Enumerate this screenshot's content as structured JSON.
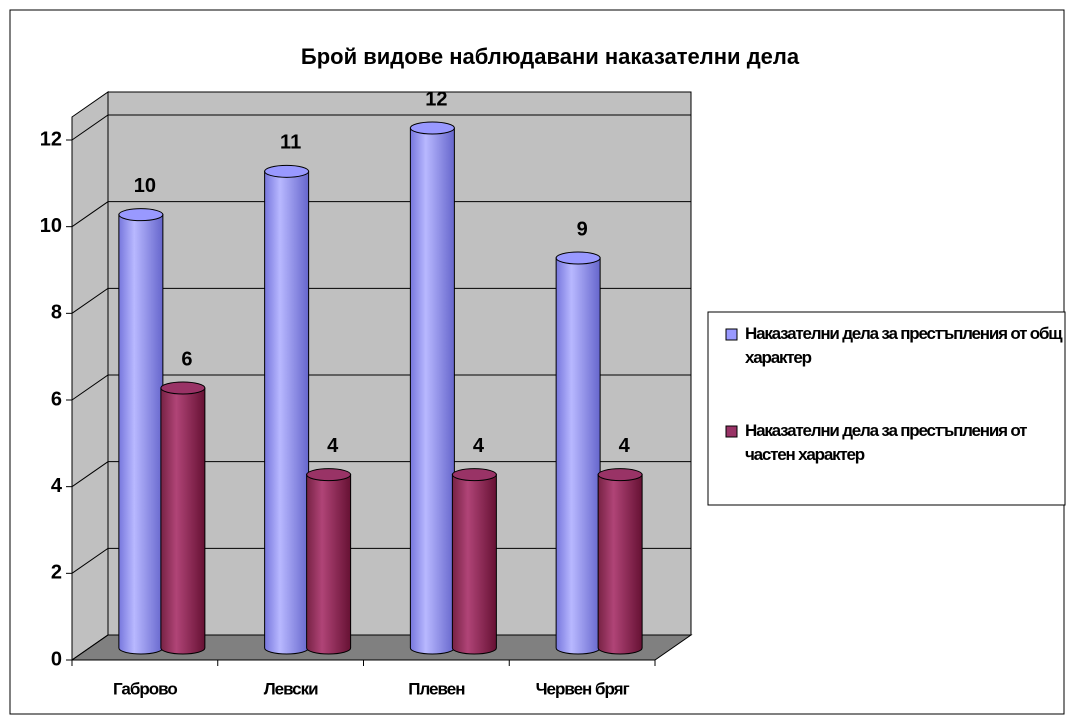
{
  "chart_data": {
    "type": "bar3d",
    "title": "Брой видове наблюдавани наказателни дела",
    "categories": [
      "Габрово",
      "Левски",
      "Плевен",
      "Червен бряг"
    ],
    "series": [
      {
        "name": "Наказателни дела за престъпления от общ характер",
        "color": "#9999ff",
        "values": [
          10,
          11,
          12,
          9
        ]
      },
      {
        "name": "Наказателни дела за престъпления от частен характер",
        "color": "#993366",
        "values": [
          6,
          4,
          4,
          4
        ]
      }
    ],
    "ylim": [
      0,
      12
    ],
    "yticks": [
      0,
      2,
      4,
      6,
      8,
      10,
      12
    ],
    "grid": true,
    "legend": "right"
  }
}
